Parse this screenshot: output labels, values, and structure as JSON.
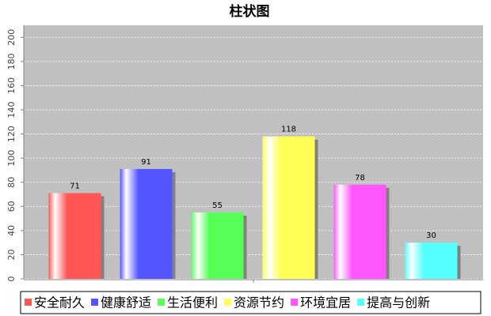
{
  "chart_data": {
    "type": "bar",
    "title": "柱状图",
    "series": [
      {
        "name": "安全耐久",
        "color": "#ff5555",
        "values": [
          71
        ]
      },
      {
        "name": "健康舒适",
        "color": "#5555ff",
        "values": [
          91
        ]
      },
      {
        "name": "生活便利",
        "color": "#55ff55",
        "values": [
          55
        ]
      },
      {
        "name": "资源节约",
        "color": "#ffff55",
        "values": [
          118
        ]
      },
      {
        "name": "环境宜居",
        "color": "#ff55ff",
        "values": [
          78
        ]
      },
      {
        "name": "提高与创新",
        "color": "#55ffff",
        "values": [
          30
        ]
      }
    ],
    "ylim": [
      0,
      210
    ],
    "yticks": [
      0,
      20,
      40,
      60,
      80,
      100,
      120,
      140,
      160,
      180,
      200
    ],
    "grid": true,
    "legend": "bottom"
  }
}
